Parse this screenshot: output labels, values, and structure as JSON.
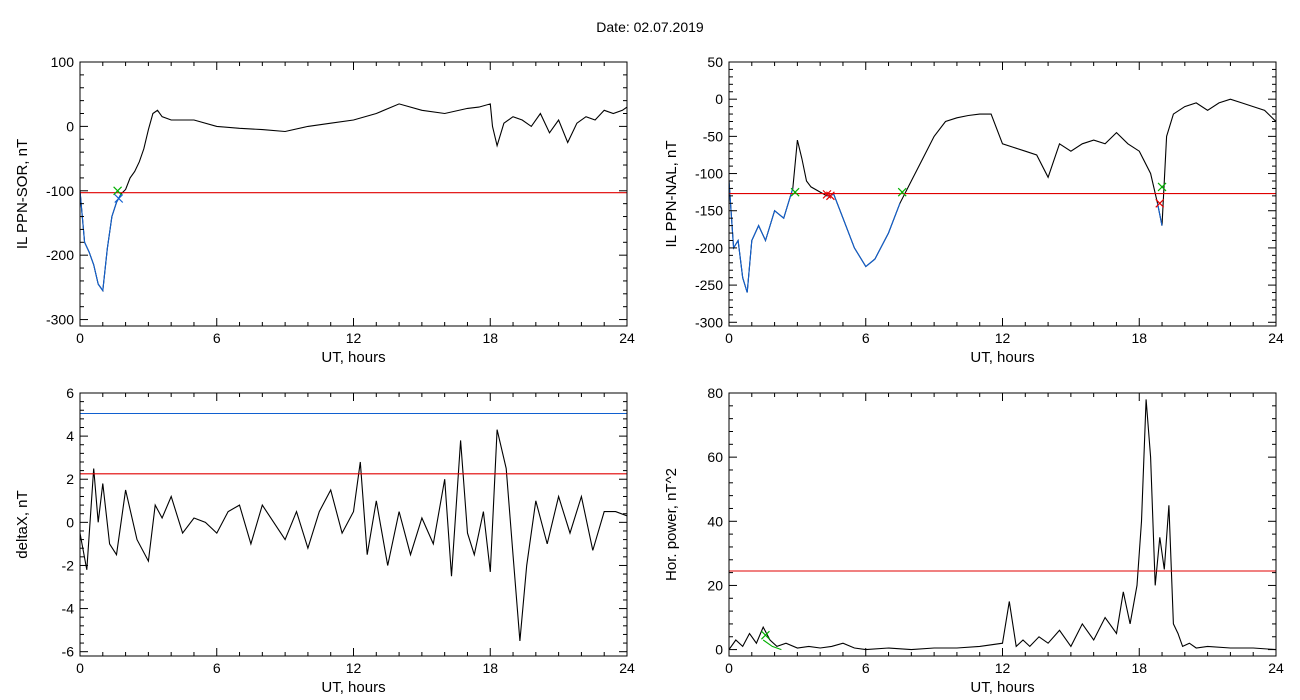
{
  "figure": {
    "title": "Date:  02.07.2019"
  },
  "chart_data": [
    {
      "type": "line",
      "xlabel": "UT, hours",
      "ylabel": "IL PPN-SOR, nT",
      "xlim": [
        0,
        24
      ],
      "ylim": [
        -310,
        100
      ],
      "xticks": [
        0,
        6,
        12,
        18,
        24
      ],
      "yticks": [
        -300,
        -200,
        -100,
        0,
        100
      ],
      "series": [
        {
          "color": "#000000",
          "x": [
            0,
            0.2,
            0.4,
            0.6,
            0.8,
            1.0,
            1.2,
            1.4,
            1.6,
            1.8,
            2.0,
            2.2,
            2.4,
            2.6,
            2.8,
            3.0,
            3.2,
            3.4,
            3.6,
            4,
            5,
            6,
            7,
            8,
            9,
            10,
            11,
            12,
            13,
            14,
            15,
            16,
            17,
            17.5,
            18,
            18.1,
            18.3,
            18.6,
            19,
            19.4,
            19.8,
            20.2,
            20.6,
            21,
            21.4,
            21.8,
            22.2,
            22.6,
            23,
            23.4,
            23.8,
            24
          ],
          "y": [
            -100,
            -180,
            -195,
            -215,
            -245,
            -255,
            -190,
            -140,
            -118,
            -105,
            -98,
            -80,
            -70,
            -55,
            -35,
            -5,
            20,
            25,
            15,
            10,
            10,
            0,
            -3,
            -5,
            -8,
            0,
            5,
            10,
            20,
            35,
            25,
            20,
            28,
            30,
            35,
            0,
            -30,
            5,
            15,
            10,
            0,
            20,
            -10,
            10,
            -25,
            5,
            15,
            10,
            25,
            20,
            25,
            30
          ]
        },
        {
          "color": "#1060d0",
          "x": [
            0,
            0.2,
            0.4,
            0.6,
            0.8,
            1.0,
            1.2,
            1.4,
            1.6,
            1.8
          ],
          "y": [
            -100,
            -180,
            -195,
            -215,
            -245,
            -255,
            -190,
            -140,
            -118,
            -105
          ]
        },
        {
          "color": "#e00000",
          "x": [
            0,
            24
          ],
          "y": [
            -103,
            -103
          ]
        }
      ],
      "markers": [
        {
          "x": 1.65,
          "y": -100,
          "color": "#00b000"
        },
        {
          "x": 1.7,
          "y": -112,
          "color": "#1060d0"
        }
      ]
    },
    {
      "type": "line",
      "xlabel": "UT, hours",
      "ylabel": "IL PPN-NAL, nT",
      "xlim": [
        0,
        24
      ],
      "ylim": [
        -305,
        50
      ],
      "xticks": [
        0,
        6,
        12,
        18,
        24
      ],
      "yticks": [
        -300,
        -250,
        -200,
        -150,
        -100,
        -50,
        0,
        50
      ],
      "series": [
        {
          "color": "#000000",
          "x": [
            0,
            0.2,
            0.4,
            0.6,
            0.8,
            1.0,
            1.3,
            1.6,
            2.0,
            2.4,
            2.8,
            3.0,
            3.2,
            3.4,
            3.6,
            4.0,
            4.3,
            4.6,
            5.0,
            5.5,
            6.0,
            6.4,
            7.0,
            7.5,
            8.0,
            8.5,
            9.0,
            9.5,
            10,
            10.5,
            11,
            11.5,
            12,
            12.5,
            13,
            13.5,
            14,
            14.5,
            15,
            15.5,
            16,
            16.5,
            17,
            17.5,
            18,
            18.5,
            18.8,
            19.0,
            19.2,
            19.5,
            20,
            20.5,
            21,
            21.5,
            22,
            22.5,
            23,
            23.5,
            24
          ],
          "y": [
            -110,
            -200,
            -190,
            -240,
            -260,
            -190,
            -170,
            -190,
            -150,
            -160,
            -120,
            -55,
            -80,
            -110,
            -118,
            -125,
            -130,
            -128,
            -160,
            -200,
            -225,
            -215,
            -180,
            -140,
            -110,
            -80,
            -50,
            -30,
            -25,
            -22,
            -20,
            -20,
            -60,
            -65,
            -70,
            -75,
            -105,
            -60,
            -70,
            -60,
            -55,
            -60,
            -45,
            -60,
            -70,
            -100,
            -140,
            -170,
            -50,
            -20,
            -10,
            -5,
            -15,
            -5,
            0,
            -5,
            -10,
            -15,
            -30
          ]
        },
        {
          "color": "#1060d0",
          "x": [
            0,
            0.2,
            0.4,
            0.6,
            0.8,
            1.0,
            1.3,
            1.6,
            2.0,
            2.4,
            2.8
          ],
          "y": [
            -110,
            -200,
            -190,
            -240,
            -260,
            -190,
            -170,
            -190,
            -150,
            -160,
            -120
          ]
        },
        {
          "color": "#1060d0",
          "x": [
            4.3,
            4.6,
            5.0,
            5.5,
            6.0,
            6.4,
            7.0,
            7.5
          ],
          "y": [
            -130,
            -128,
            -160,
            -200,
            -225,
            -215,
            -180,
            -140
          ]
        },
        {
          "color": "#1060d0",
          "x": [
            18.8,
            19.0
          ],
          "y": [
            -140,
            -170
          ]
        },
        {
          "color": "#e00000",
          "x": [
            0,
            24
          ],
          "y": [
            -127,
            -127
          ]
        }
      ],
      "markers": [
        {
          "x": 2.9,
          "y": -125,
          "color": "#00b000"
        },
        {
          "x": 4.3,
          "y": -128,
          "color": "#e00000"
        },
        {
          "x": 4.45,
          "y": -130,
          "color": "#e00000"
        },
        {
          "x": 7.6,
          "y": -125,
          "color": "#00b000"
        },
        {
          "x": 18.9,
          "y": -140,
          "color": "#e00000"
        },
        {
          "x": 19.0,
          "y": -118,
          "color": "#00b000"
        }
      ]
    },
    {
      "type": "line",
      "xlabel": "UT, hours",
      "ylabel": "deltaX, nT",
      "xlim": [
        0,
        24
      ],
      "ylim": [
        -6.2,
        6
      ],
      "xticks": [
        0,
        6,
        12,
        18,
        24
      ],
      "yticks": [
        -6,
        -4,
        -2,
        0,
        2,
        4,
        6
      ],
      "series": [
        {
          "color": "#000000",
          "x": [
            0,
            0.3,
            0.6,
            0.8,
            1.0,
            1.3,
            1.6,
            2.0,
            2.5,
            3.0,
            3.3,
            3.6,
            4.0,
            4.5,
            5.0,
            5.5,
            6,
            6.5,
            7,
            7.5,
            8,
            8.5,
            9,
            9.5,
            10,
            10.5,
            11,
            11.5,
            12,
            12.3,
            12.6,
            13,
            13.5,
            14,
            14.5,
            15,
            15.5,
            16,
            16.3,
            16.7,
            17,
            17.3,
            17.7,
            18,
            18.3,
            18.7,
            19.0,
            19.3,
            19.6,
            20,
            20.5,
            21,
            21.5,
            22,
            22.5,
            23,
            23.5,
            24
          ],
          "y": [
            -0.5,
            -2.2,
            2.5,
            0,
            1.8,
            -1,
            -1.5,
            1.5,
            -0.8,
            -1.8,
            0.8,
            0.2,
            1.2,
            -0.5,
            0.2,
            0,
            -0.5,
            0.5,
            0.8,
            -1,
            0.8,
            0,
            -0.8,
            0.5,
            -1.2,
            0.5,
            1.5,
            -0.5,
            0.5,
            2.8,
            -1.5,
            1.0,
            -2,
            0.5,
            -1.5,
            0.2,
            -1,
            2.0,
            -2.5,
            3.8,
            -0.5,
            -1.5,
            0.5,
            -2.3,
            4.3,
            2.5,
            -1.5,
            -5.5,
            -2,
            1,
            -1,
            1.2,
            -0.5,
            1.2,
            -1.3,
            0.5,
            0.5,
            0.3
          ]
        },
        {
          "color": "#e00000",
          "x": [
            0,
            24
          ],
          "y": [
            2.25,
            2.25
          ]
        },
        {
          "color": "#1060d0",
          "x": [
            0,
            24
          ],
          "y": [
            5.05,
            5.05
          ]
        }
      ],
      "markers": []
    },
    {
      "type": "line",
      "xlabel": "UT, hours",
      "ylabel": "Hor. power, nT^2",
      "xlim": [
        0,
        24
      ],
      "ylim": [
        -2,
        80
      ],
      "xticks": [
        0,
        6,
        12,
        18,
        24
      ],
      "yticks": [
        0,
        20,
        40,
        60,
        80
      ],
      "series": [
        {
          "color": "#000000",
          "x": [
            0,
            0.3,
            0.6,
            0.9,
            1.2,
            1.5,
            1.8,
            2.1,
            2.5,
            3,
            3.5,
            4,
            4.5,
            5,
            5.5,
            6,
            7,
            8,
            9,
            10,
            11,
            12,
            12.3,
            12.6,
            12.9,
            13.2,
            13.6,
            14,
            14.5,
            15,
            15.5,
            16,
            16.5,
            17,
            17.3,
            17.6,
            17.9,
            18.1,
            18.3,
            18.5,
            18.7,
            18.9,
            19.1,
            19.3,
            19.5,
            19.7,
            19.9,
            20.2,
            20.5,
            21,
            22,
            23,
            24
          ],
          "y": [
            0,
            3,
            1,
            5,
            2,
            7,
            3,
            1,
            2,
            0.5,
            1,
            0.5,
            1,
            2,
            0.5,
            0,
            0.5,
            0,
            0.5,
            0.5,
            1,
            2,
            15,
            1,
            3,
            1,
            4,
            2,
            6,
            1,
            8,
            3,
            10,
            5,
            18,
            8,
            20,
            40,
            78,
            60,
            20,
            35,
            25,
            45,
            8,
            5,
            1,
            2,
            0.5,
            1,
            0.5,
            0.5,
            0
          ]
        },
        {
          "color": "#00b000",
          "x": [
            1.5,
            1.9,
            2.3
          ],
          "y": [
            3,
            1,
            0
          ]
        },
        {
          "color": "#e00000",
          "x": [
            0,
            24
          ],
          "y": [
            24.5,
            24.5
          ]
        }
      ],
      "markers": [
        {
          "x": 1.6,
          "y": 4.5,
          "color": "#00b000"
        }
      ]
    }
  ]
}
